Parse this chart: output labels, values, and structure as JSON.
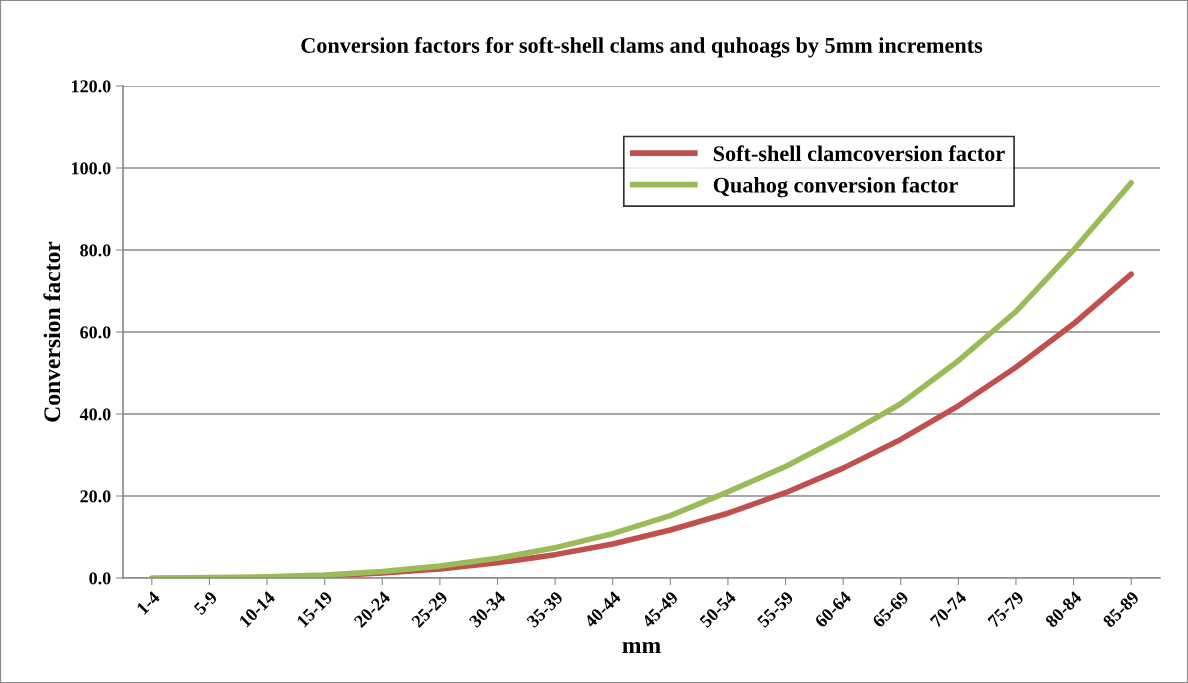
{
  "chart_data": {
    "type": "line",
    "title": "Conversion factors for soft-shell clams and quhoags by 5mm increments",
    "xlabel": "mm",
    "ylabel": "Conversion factor",
    "categories": [
      "1-4",
      "5-9",
      "10-14",
      "15-19",
      "20-24",
      "25-29",
      "30-34",
      "35-39",
      "40-44",
      "45-49",
      "50-54",
      "55-59",
      "60-64",
      "65-69",
      "70-74",
      "75-79",
      "80-84",
      "85-89"
    ],
    "series": [
      {
        "name": "Soft-shell clamcoversion factor",
        "color": "#c0504d",
        "values": [
          null,
          null,
          0.2,
          0.5,
          1.2,
          2.2,
          3.7,
          5.7,
          8.3,
          11.7,
          15.8,
          20.8,
          26.8,
          33.8,
          42.0,
          51.4,
          62.0,
          74.1
        ]
      },
      {
        "name": "Quahog conversion factor",
        "color": "#9bbb59",
        "values": [
          0,
          0.1,
          0.3,
          0.7,
          1.6,
          2.9,
          4.8,
          7.4,
          10.8,
          15.2,
          21.0,
          27.2,
          34.5,
          42.5,
          53.0,
          65.0,
          80.0,
          96.4
        ]
      }
    ],
    "ylim": [
      0,
      120
    ],
    "yticks": [
      {
        "value": 0,
        "label": "0.0"
      },
      {
        "value": 20,
        "label": "20.0"
      },
      {
        "value": 40,
        "label": "40.0"
      },
      {
        "value": 60,
        "label": "60.0"
      },
      {
        "value": 80,
        "label": "80.0"
      },
      {
        "value": 100,
        "label": "100.0"
      },
      {
        "value": 120,
        "label": "120.0"
      }
    ],
    "grid": "y",
    "legend": "top right",
    "marker": "none",
    "line_style": "solid"
  }
}
